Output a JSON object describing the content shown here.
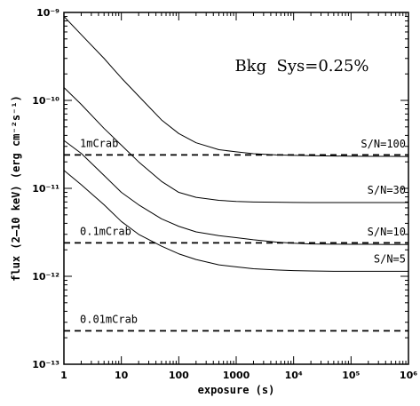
{
  "chart_data": {
    "type": "line",
    "title": "",
    "xlabel": "exposure (s)",
    "ylabel": "flux (2–10 keV) (erg cm⁻²s⁻¹)",
    "x_scale": "log",
    "y_scale": "log",
    "xlim": [
      1,
      1000000
    ],
    "ylim": [
      1e-13,
      1e-09
    ],
    "annotation": "Bkg  Sys=0.25%",
    "x_ticks": [
      "1",
      "10",
      "100",
      "1000",
      "10⁴",
      "10⁵",
      "10⁶"
    ],
    "y_ticks": [
      "10⁻¹³",
      "10⁻¹²",
      "10⁻¹¹",
      "10⁻¹⁰",
      "10⁻⁹"
    ],
    "x": [
      1,
      2,
      5,
      10,
      20,
      50,
      100,
      200,
      500,
      1000,
      2000,
      5000,
      10000,
      20000,
      50000,
      100000,
      200000,
      500000,
      1000000
    ],
    "series": [
      {
        "name": "S/N=100",
        "values": [
          9e-10,
          5.6e-10,
          3e-10,
          1.8e-10,
          1.12e-10,
          6e-11,
          4.2e-11,
          3.3e-11,
          2.75e-11,
          2.6e-11,
          2.48e-11,
          2.4e-11,
          2.37e-11,
          2.35e-11,
          2.33e-11,
          2.32e-11,
          2.31e-11,
          2.31e-11,
          2.3e-11
        ]
      },
      {
        "name": "S/N=30",
        "values": [
          1.4e-10,
          9e-11,
          4.8e-11,
          3.1e-11,
          2e-11,
          1.2e-11,
          9e-12,
          7.9e-12,
          7.3e-12,
          7.1e-12,
          7e-12,
          6.95e-12,
          6.92e-12,
          6.9e-12,
          6.9e-12,
          6.9e-12,
          6.9e-12,
          6.9e-12,
          6.9e-12
        ]
      },
      {
        "name": "S/N=10",
        "values": [
          3.5e-11,
          2.5e-11,
          1.4e-11,
          9e-12,
          6.5e-12,
          4.5e-12,
          3.7e-12,
          3.2e-12,
          2.9e-12,
          2.75e-12,
          2.6e-12,
          2.45e-12,
          2.38e-12,
          2.33e-12,
          2.32e-12,
          2.31e-12,
          2.31e-12,
          2.3e-12,
          2.3e-12
        ]
      },
      {
        "name": "S/N=5",
        "values": [
          1.6e-11,
          1.1e-11,
          6.5e-12,
          4.2e-12,
          3e-12,
          2.2e-12,
          1.8e-12,
          1.55e-12,
          1.35e-12,
          1.28e-12,
          1.22e-12,
          1.18e-12,
          1.16e-12,
          1.15e-12,
          1.14e-12,
          1.14e-12,
          1.14e-12,
          1.14e-12,
          1.14e-12
        ]
      }
    ],
    "reference_lines": [
      {
        "label": "1mCrab",
        "value": 2.4e-11
      },
      {
        "label": "0.1mCrab",
        "value": 2.4e-12
      },
      {
        "label": "0.01mCrab",
        "value": 2.4e-13
      }
    ]
  }
}
